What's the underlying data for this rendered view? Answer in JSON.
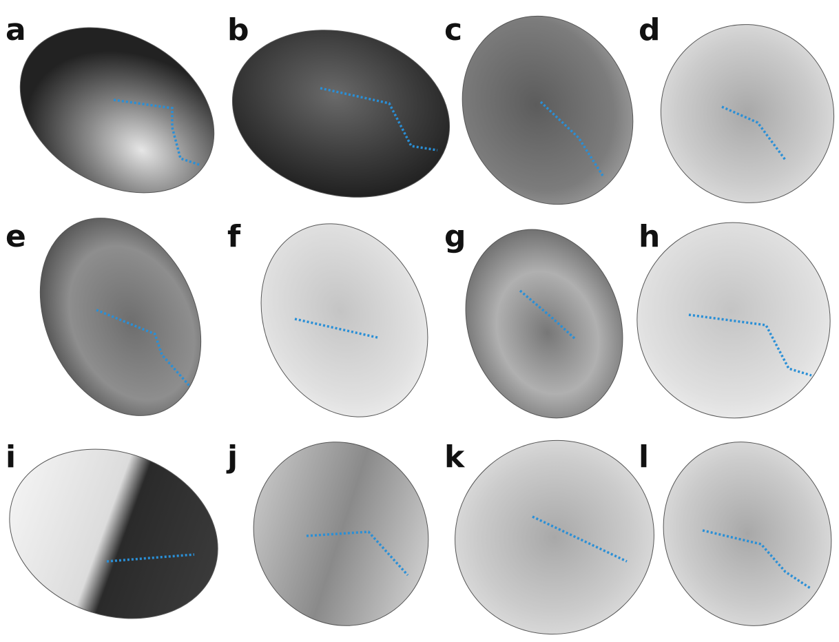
{
  "panels": [
    {
      "label": "a"
    },
    {
      "label": "b"
    },
    {
      "label": "c"
    },
    {
      "label": "d"
    },
    {
      "label": "e"
    },
    {
      "label": "f"
    },
    {
      "label": "g"
    },
    {
      "label": "h"
    },
    {
      "label": "i"
    },
    {
      "label": "j"
    },
    {
      "label": "k"
    },
    {
      "label": "l"
    }
  ]
}
